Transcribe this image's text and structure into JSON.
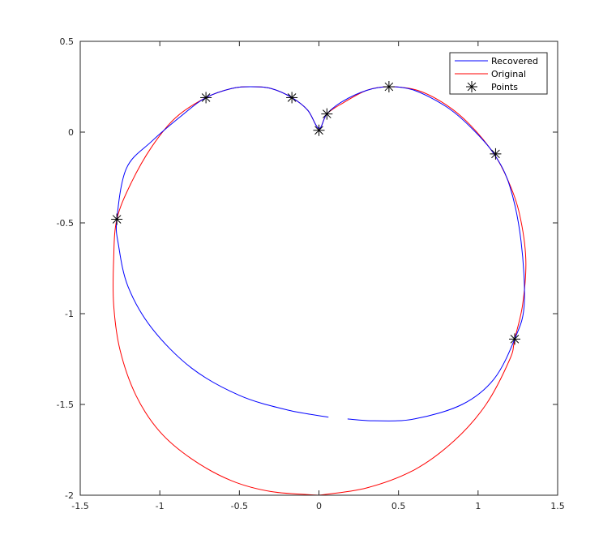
{
  "chart_data": {
    "type": "line",
    "xlim": [
      -1.5,
      1.5
    ],
    "ylim": [
      -2,
      0.5
    ],
    "x_ticks": [
      -1.5,
      -1,
      -0.5,
      0,
      0.5,
      1,
      1.5
    ],
    "x_tick_labels": [
      "-1.5",
      "-1",
      "-0.5",
      "0",
      "0.5",
      "1",
      "1.5"
    ],
    "y_ticks": [
      -2,
      -1.5,
      -1,
      -0.5,
      0,
      0.5
    ],
    "y_tick_labels": [
      "-2",
      "-1.5",
      "-1",
      "-0.5",
      "0",
      "0.5"
    ],
    "grid": false,
    "legend_position": "top-right",
    "series": [
      {
        "name": "Recovered",
        "color": "#0000ff",
        "segments": [
          [
            [
              0.06,
              -1.57
            ],
            [
              -0.2,
              -1.53
            ],
            [
              -0.5,
              -1.45
            ],
            [
              -0.8,
              -1.3
            ],
            [
              -1.05,
              -1.08
            ],
            [
              -1.2,
              -0.85
            ],
            [
              -1.26,
              -0.62
            ],
            [
              -1.27,
              -0.48
            ],
            [
              -1.21,
              -0.2
            ],
            [
              -1.05,
              -0.05
            ],
            [
              -0.85,
              0.1
            ],
            [
              -0.71,
              0.19
            ],
            [
              -0.55,
              0.24
            ],
            [
              -0.43,
              0.25
            ],
            [
              -0.3,
              0.24
            ],
            [
              -0.17,
              0.19
            ],
            [
              -0.07,
              0.12
            ],
            [
              0.0,
              0.02
            ],
            [
              0.05,
              0.1
            ],
            [
              0.15,
              0.17
            ],
            [
              0.3,
              0.23
            ],
            [
              0.44,
              0.25
            ],
            [
              0.6,
              0.23
            ],
            [
              0.8,
              0.14
            ],
            [
              0.95,
              0.03
            ],
            [
              1.1,
              -0.12
            ],
            [
              1.2,
              -0.3
            ],
            [
              1.27,
              -0.6
            ],
            [
              1.29,
              -0.95
            ],
            [
              1.23,
              -1.14
            ],
            [
              1.1,
              -1.36
            ],
            [
              0.9,
              -1.5
            ],
            [
              0.6,
              -1.58
            ],
            [
              0.35,
              -1.59
            ],
            [
              0.18,
              -1.58
            ]
          ]
        ]
      },
      {
        "name": "Original",
        "color": "#ff0000",
        "segments": [
          [
            [
              0.0,
              -2.0
            ],
            [
              0.3,
              -1.96
            ],
            [
              0.6,
              -1.86
            ],
            [
              0.85,
              -1.7
            ],
            [
              1.05,
              -1.5
            ],
            [
              1.2,
              -1.25
            ],
            [
              1.23,
              -1.14
            ],
            [
              1.28,
              -0.95
            ],
            [
              1.3,
              -0.7
            ],
            [
              1.26,
              -0.45
            ],
            [
              1.19,
              -0.27
            ],
            [
              1.1,
              -0.12
            ],
            [
              0.95,
              0.04
            ],
            [
              0.8,
              0.15
            ],
            [
              0.62,
              0.23
            ],
            [
              0.44,
              0.25
            ],
            [
              0.3,
              0.23
            ],
            [
              0.15,
              0.16
            ],
            [
              0.05,
              0.1
            ],
            [
              0.0,
              0.02
            ],
            [
              -0.07,
              0.12
            ],
            [
              -0.17,
              0.19
            ],
            [
              -0.3,
              0.24
            ],
            [
              -0.43,
              0.25
            ],
            [
              -0.55,
              0.24
            ],
            [
              -0.71,
              0.19
            ],
            [
              -0.9,
              0.08
            ],
            [
              -1.05,
              -0.08
            ],
            [
              -1.18,
              -0.28
            ],
            [
              -1.27,
              -0.48
            ],
            [
              -1.29,
              -0.7
            ],
            [
              -1.29,
              -0.95
            ],
            [
              -1.25,
              -1.2
            ],
            [
              -1.15,
              -1.45
            ],
            [
              -1.0,
              -1.65
            ],
            [
              -0.8,
              -1.8
            ],
            [
              -0.55,
              -1.92
            ],
            [
              -0.3,
              -1.98
            ],
            [
              0.0,
              -2.0
            ]
          ]
        ]
      },
      {
        "name": "Points",
        "marker": "asterisk",
        "color": "#000000",
        "points": [
          [
            -1.27,
            -0.48
          ],
          [
            -0.71,
            0.19
          ],
          [
            -0.17,
            0.19
          ],
          [
            0.0,
            0.01
          ],
          [
            0.05,
            0.1
          ],
          [
            0.44,
            0.25
          ],
          [
            1.11,
            -0.12
          ],
          [
            1.23,
            -1.14
          ]
        ]
      }
    ]
  }
}
